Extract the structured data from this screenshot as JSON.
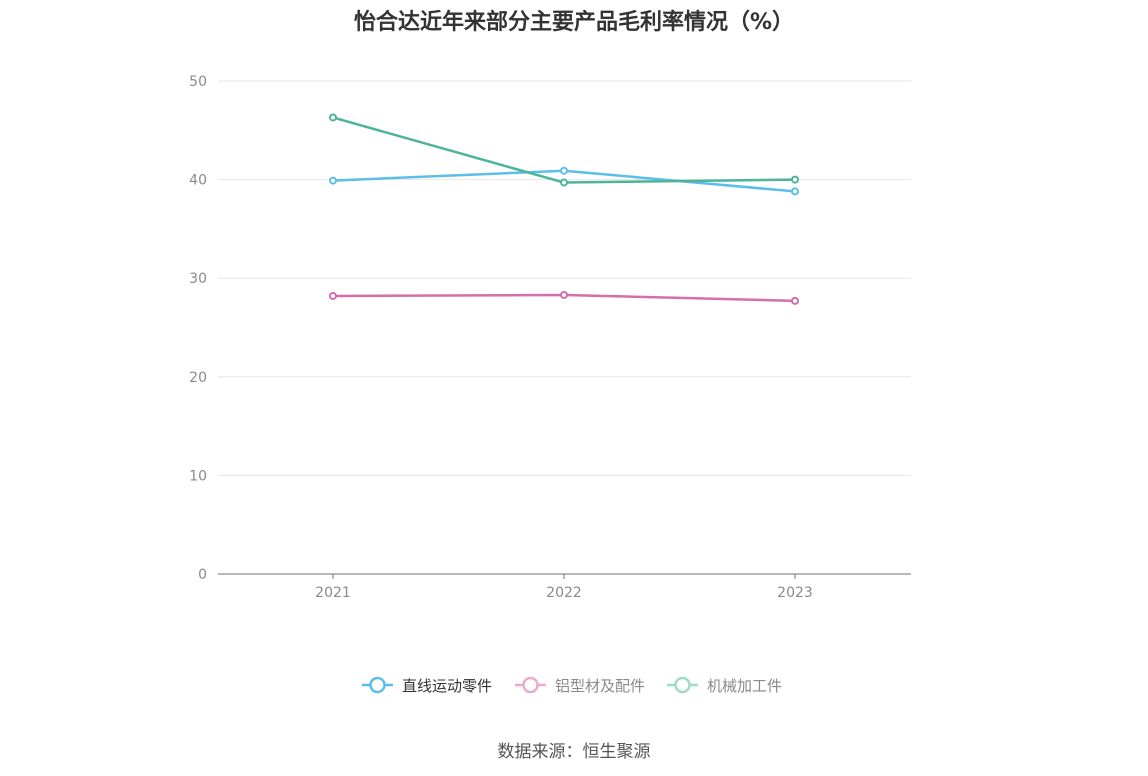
{
  "chart_data": {
    "type": "line",
    "title": "怡合达近年来部分主要产品毛利率情况（%）",
    "xlabel": "",
    "ylabel": "",
    "categories": [
      "2021",
      "2022",
      "2023"
    ],
    "ylim": [
      0,
      50
    ],
    "yticks": [
      0,
      10,
      20,
      30,
      40,
      50
    ],
    "grid": true,
    "legend_position": "bottom",
    "series": [
      {
        "name": "直线运动零件",
        "color": "#5BBDEA",
        "values": [
          39.9,
          40.9,
          38.8
        ]
      },
      {
        "name": "铝型材及配件",
        "color": "#D56DAE",
        "values": [
          28.2,
          28.3,
          27.7
        ]
      },
      {
        "name": "机械加工件",
        "color": "#4DB498",
        "values": [
          46.3,
          39.7,
          40.0
        ]
      }
    ]
  },
  "source": "数据来源：恒生聚源"
}
